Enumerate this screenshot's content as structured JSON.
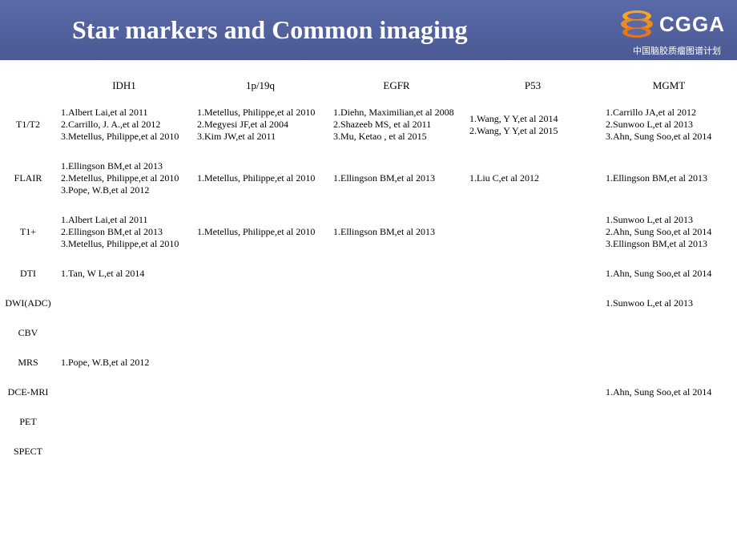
{
  "header": {
    "title": "Star markers and Common imaging",
    "logo_text": "CGGA",
    "logo_subtitle": "中国脑胶质瘤图谱计划",
    "bg_gradient_top": "#5a6aa8",
    "bg_gradient_bottom": "#4b5a94",
    "title_color": "#ffffff"
  },
  "table": {
    "columns": [
      "IDH1",
      "1p/19q",
      "EGFR",
      "P53",
      "MGMT"
    ],
    "rows": [
      "T1/T2",
      "FLAIR",
      "T1+",
      "DTI",
      "DWI(ADC)",
      "CBV",
      "MRS",
      "DCE-MRI",
      "PET",
      "SPECT"
    ],
    "cells": {
      "T1/T2": {
        "IDH1": [
          "1.Albert Lai,et al 2011",
          "2.Carrillo, J. A.,et al 2012",
          "3.Metellus, Philippe,et al 2010"
        ],
        "1p/19q": [
          "1.Metellus, Philippe,et al 2010",
          "2.Megyesi JF,et al 2004",
          "3.Kim JW,et al 2011"
        ],
        "EGFR": [
          "1.Diehn, Maximilian,et al 2008",
          "2.Shazeeb MS, et al 2011",
          "3.Mu, Ketao ,  et al 2015"
        ],
        "P53": [
          "1.Wang, Y Y,et al 2014",
          "2.Wang, Y Y,et al 2015"
        ],
        "MGMT": [
          "1.Carrillo JA,et al 2012",
          "2.Sunwoo L,et al 2013",
          "3.Ahn, Sung Soo,et al 2014"
        ]
      },
      "FLAIR": {
        "IDH1": [
          "1.Ellingson BM,et al 2013",
          "2.Metellus, Philippe,et al 2010",
          "3.Pope, W.B,et al 2012"
        ],
        "1p/19q": [
          "1.Metellus, Philippe,et al 2010"
        ],
        "EGFR": [
          "1.Ellingson BM,et al 2013"
        ],
        "P53": [
          "1.Liu C,et al 2012"
        ],
        "MGMT": [
          "1.Ellingson BM,et al 2013"
        ]
      },
      "T1+": {
        "IDH1": [
          "1.Albert Lai,et al 2011",
          "2.Ellingson BM,et al 2013",
          "3.Metellus, Philippe,et al 2010"
        ],
        "1p/19q": [
          "1.Metellus, Philippe,et al 2010"
        ],
        "EGFR": [
          "1.Ellingson BM,et al 2013"
        ],
        "P53": [],
        "MGMT": [
          "1.Sunwoo L,et al 2013",
          "2.Ahn, Sung Soo,et al 2014",
          "3.Ellingson BM,et al 2013"
        ]
      },
      "DTI": {
        "IDH1": [
          "1.Tan, W L,et al 2014"
        ],
        "1p/19q": [],
        "EGFR": [],
        "P53": [],
        "MGMT": [
          "1.Ahn, Sung Soo,et al 2014"
        ]
      },
      "DWI(ADC)": {
        "IDH1": [],
        "1p/19q": [],
        "EGFR": [],
        "P53": [],
        "MGMT": [
          "1.Sunwoo L,et al 2013"
        ]
      },
      "CBV": {
        "IDH1": [],
        "1p/19q": [],
        "EGFR": [],
        "P53": [],
        "MGMT": []
      },
      "MRS": {
        "IDH1": [
          "1.Pope, W.B,et al 2012"
        ],
        "1p/19q": [],
        "EGFR": [],
        "P53": [],
        "MGMT": []
      },
      "DCE-MRI": {
        "IDH1": [],
        "1p/19q": [],
        "EGFR": [],
        "P53": [],
        "MGMT": [
          "1.Ahn, Sung Soo,et al 2014"
        ]
      },
      "PET": {
        "IDH1": [],
        "1p/19q": [],
        "EGFR": [],
        "P53": [],
        "MGMT": []
      },
      "SPECT": {
        "IDH1": [],
        "1p/19q": [],
        "EGFR": [],
        "P53": [],
        "MGMT": []
      }
    },
    "font_size_pt": 12,
    "text_color": "#000000",
    "background_color": "#ffffff"
  },
  "logo_colors": {
    "orange1": "#f5a623",
    "orange2": "#f08c1e",
    "orange3": "#e6761a"
  }
}
